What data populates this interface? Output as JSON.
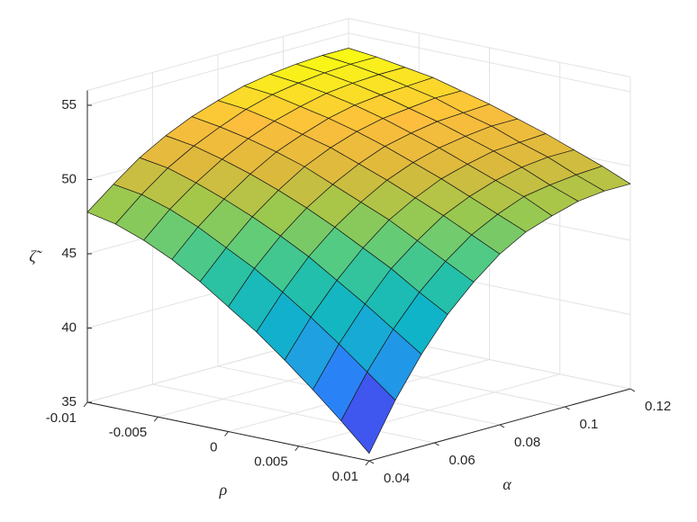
{
  "chart_data": {
    "type": "surface",
    "x_label": "ρ",
    "y_label": "α",
    "z_label": "ζ̃",
    "x": [
      -0.01,
      -0.008,
      -0.006,
      -0.004,
      -0.002,
      0,
      0.002,
      0.004,
      0.006,
      0.008,
      0.01
    ],
    "y": [
      0.04,
      0.048,
      0.056,
      0.064,
      0.072,
      0.08,
      0.088,
      0.096,
      0.104,
      0.112,
      0.12
    ],
    "z": [
      [
        47.8,
        47.4,
        46.7,
        45.8,
        44.7,
        43.4,
        42.1,
        40.6,
        39.0,
        37.3,
        35.5
      ],
      [
        49.2,
        48.9,
        48.3,
        47.5,
        46.5,
        45.5,
        44.3,
        43.0,
        41.6,
        40.1,
        38.6
      ],
      [
        50.5,
        50.2,
        49.6,
        48.9,
        48.1,
        47.2,
        46.2,
        45.0,
        43.8,
        42.5,
        41.2
      ],
      [
        51.5,
        51.2,
        50.7,
        50.1,
        49.4,
        48.6,
        47.7,
        46.7,
        45.7,
        44.5,
        43.4
      ],
      [
        52.3,
        52.0,
        51.6,
        51.1,
        50.5,
        49.7,
        48.9,
        48.1,
        47.1,
        46.1,
        45.1
      ],
      [
        52.9,
        52.7,
        52.3,
        51.8,
        51.3,
        50.6,
        49.9,
        49.1,
        48.3,
        47.4,
        46.5
      ],
      [
        53.4,
        53.2,
        52.8,
        52.4,
        51.9,
        51.3,
        50.6,
        49.9,
        49.1,
        48.3,
        47.5
      ],
      [
        53.7,
        53.5,
        53.2,
        52.8,
        52.3,
        51.7,
        51.1,
        50.4,
        49.7,
        49.0,
        48.1
      ],
      [
        53.9,
        53.7,
        53.4,
        53.0,
        52.5,
        52.0,
        51.4,
        50.8,
        50.1,
        49.3,
        48.6
      ],
      [
        54.0,
        53.8,
        53.5,
        53.1,
        52.7,
        52.1,
        51.6,
        50.9,
        50.3,
        49.5,
        48.8
      ],
      [
        54.0,
        53.8,
        53.5,
        53.2,
        52.7,
        52.2,
        51.6,
        51.0,
        50.3,
        49.6,
        48.8
      ]
    ],
    "xlim": [
      -0.01,
      0.01
    ],
    "ylim": [
      0.04,
      0.12
    ],
    "zlim": [
      35,
      56
    ],
    "xticks": [
      -0.01,
      -0.005,
      0,
      0.005,
      0.01
    ],
    "yticks": [
      0.04,
      0.06,
      0.08,
      0.1,
      0.12
    ],
    "zticks": [
      35,
      40,
      45,
      50,
      55
    ],
    "grid": true,
    "colormap": "parula"
  }
}
